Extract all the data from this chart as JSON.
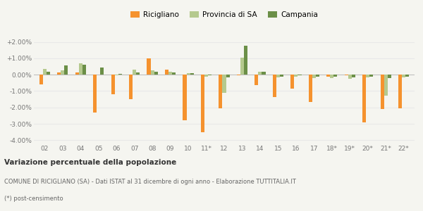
{
  "categories": [
    "02",
    "03",
    "04",
    "05",
    "06",
    "07",
    "08",
    "09",
    "10",
    "11*",
    "12",
    "13",
    "14",
    "15",
    "16",
    "17",
    "18*",
    "19*",
    "20*",
    "21*",
    "22*"
  ],
  "ricigliano": [
    -0.6,
    0.15,
    0.15,
    -2.3,
    -1.2,
    -1.5,
    1.0,
    0.3,
    -2.8,
    -3.5,
    -2.05,
    -0.05,
    -0.65,
    -1.35,
    -0.85,
    -1.65,
    -0.1,
    -0.05,
    -2.9,
    -2.1,
    -2.05
  ],
  "provincia_sa": [
    0.35,
    0.25,
    0.7,
    0.0,
    -0.05,
    0.3,
    0.25,
    0.2,
    0.1,
    -0.1,
    -1.1,
    1.05,
    0.2,
    -0.15,
    -0.1,
    -0.2,
    -0.2,
    -0.25,
    -0.15,
    -1.3,
    -0.15
  ],
  "campania": [
    0.2,
    0.55,
    0.6,
    0.45,
    0.05,
    0.15,
    0.2,
    0.15,
    0.1,
    -0.05,
    -0.15,
    1.75,
    0.2,
    -0.1,
    -0.05,
    -0.1,
    -0.1,
    -0.15,
    -0.1,
    -0.2,
    -0.1
  ],
  "color_ricigliano": "#f5922e",
  "color_provincia_sa": "#b5c98e",
  "color_campania": "#6b8f47",
  "title_bold": "Variazione percentuale della popolazione",
  "subtitle": "COMUNE DI RICIGLIANO (SA) - Dati ISTAT al 31 dicembre di ogni anno - Elaborazione TUTTITALIA.IT",
  "footnote": "(*) post-censimento",
  "legend_labels": [
    "Ricigliano",
    "Provincia di SA",
    "Campania"
  ],
  "ylim": [
    -4.2,
    2.5
  ],
  "yticks": [
    -4.0,
    -3.0,
    -2.0,
    -1.0,
    0.0,
    1.0,
    2.0
  ],
  "bg_color": "#f5f5f0",
  "grid_color": "#e8e8e8"
}
